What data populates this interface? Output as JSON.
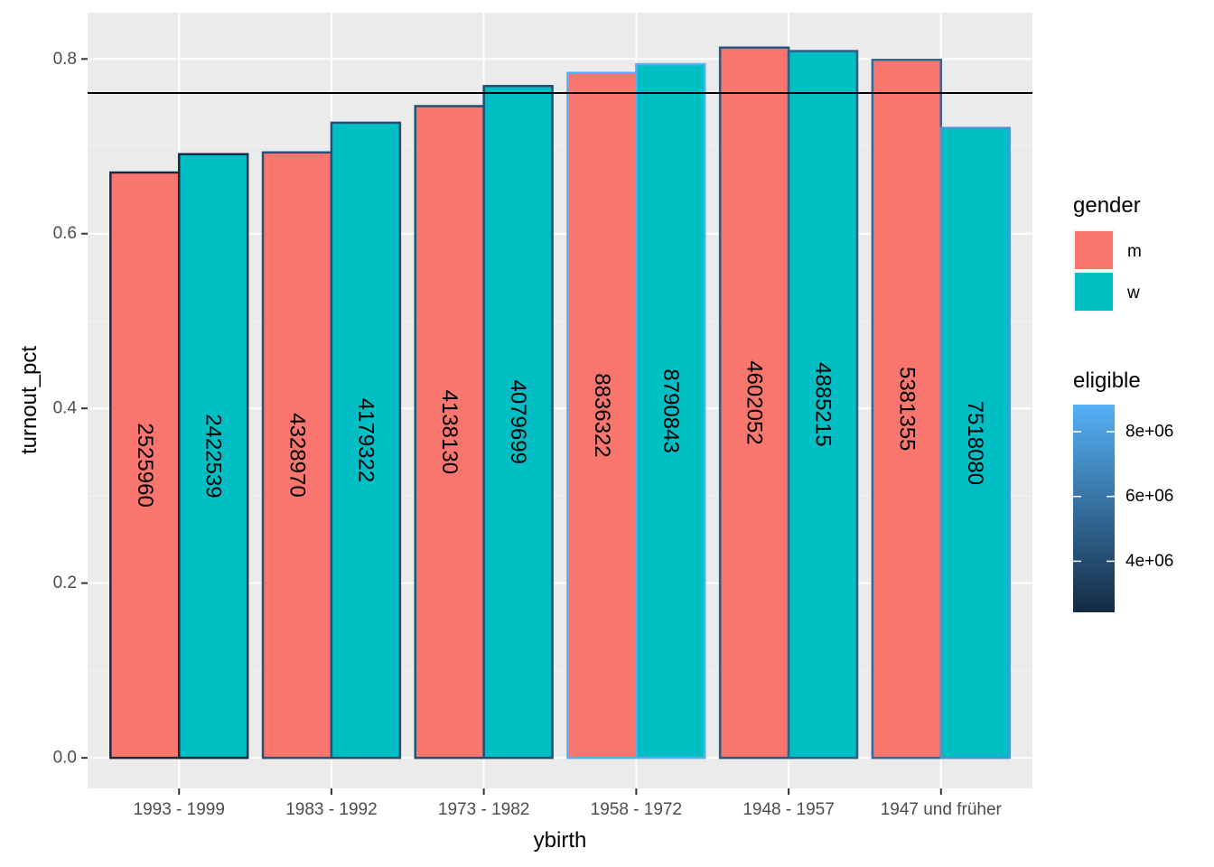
{
  "chart_data": {
    "type": "bar",
    "xlabel": "ybirth",
    "ylabel": "turnout_pct",
    "ylim": [
      -0.035,
      0.853
    ],
    "yticks": [
      0.0,
      0.2,
      0.4,
      0.6,
      0.8
    ],
    "ytick_labels": [
      "0.0",
      "0.2",
      "0.4",
      "0.6",
      "0.8"
    ],
    "grid": true,
    "categories": [
      "1993 - 1999",
      "1983 - 1992",
      "1973 - 1982",
      "1958 - 1972",
      "1948 - 1957",
      "1947 und früher"
    ],
    "series": [
      {
        "name": "m",
        "color": "#F8766D",
        "values": [
          0.67,
          0.693,
          0.746,
          0.784,
          0.813,
          0.799
        ],
        "eligible": [
          2525960,
          4328970,
          4138130,
          8836322,
          4602052,
          5381355
        ],
        "labels": [
          "2525960",
          "4328970",
          "4138130",
          "8836322",
          "4602052",
          "5381355"
        ]
      },
      {
        "name": "w",
        "color": "#00BFC4",
        "values": [
          0.691,
          0.727,
          0.769,
          0.794,
          0.809,
          0.721
        ],
        "eligible": [
          2422539,
          4179322,
          4079699,
          8790843,
          4885215,
          7518080
        ],
        "labels": [
          "2422539",
          "4179322",
          "4079699",
          "8790843",
          "4885215",
          "7518080"
        ]
      }
    ],
    "hline": 0.761,
    "legend": {
      "placement": "right",
      "fill_title": "gender",
      "fill_entries": [
        "m",
        "w"
      ],
      "colour_title": "eligible",
      "colour_ticks": [
        4000000,
        6000000,
        8000000
      ],
      "colour_tick_labels": [
        "4e+06",
        "6e+06",
        "8e+06"
      ],
      "colour_range": [
        2422539,
        8836322
      ],
      "gradient_low": "#132B43",
      "gradient_high": "#56B1F7"
    },
    "colors": {
      "panel_background": "#EBEBEB",
      "grid_major": "#FFFFFF",
      "grid_minor": "#F5F5F5",
      "hline": "#000000"
    }
  }
}
